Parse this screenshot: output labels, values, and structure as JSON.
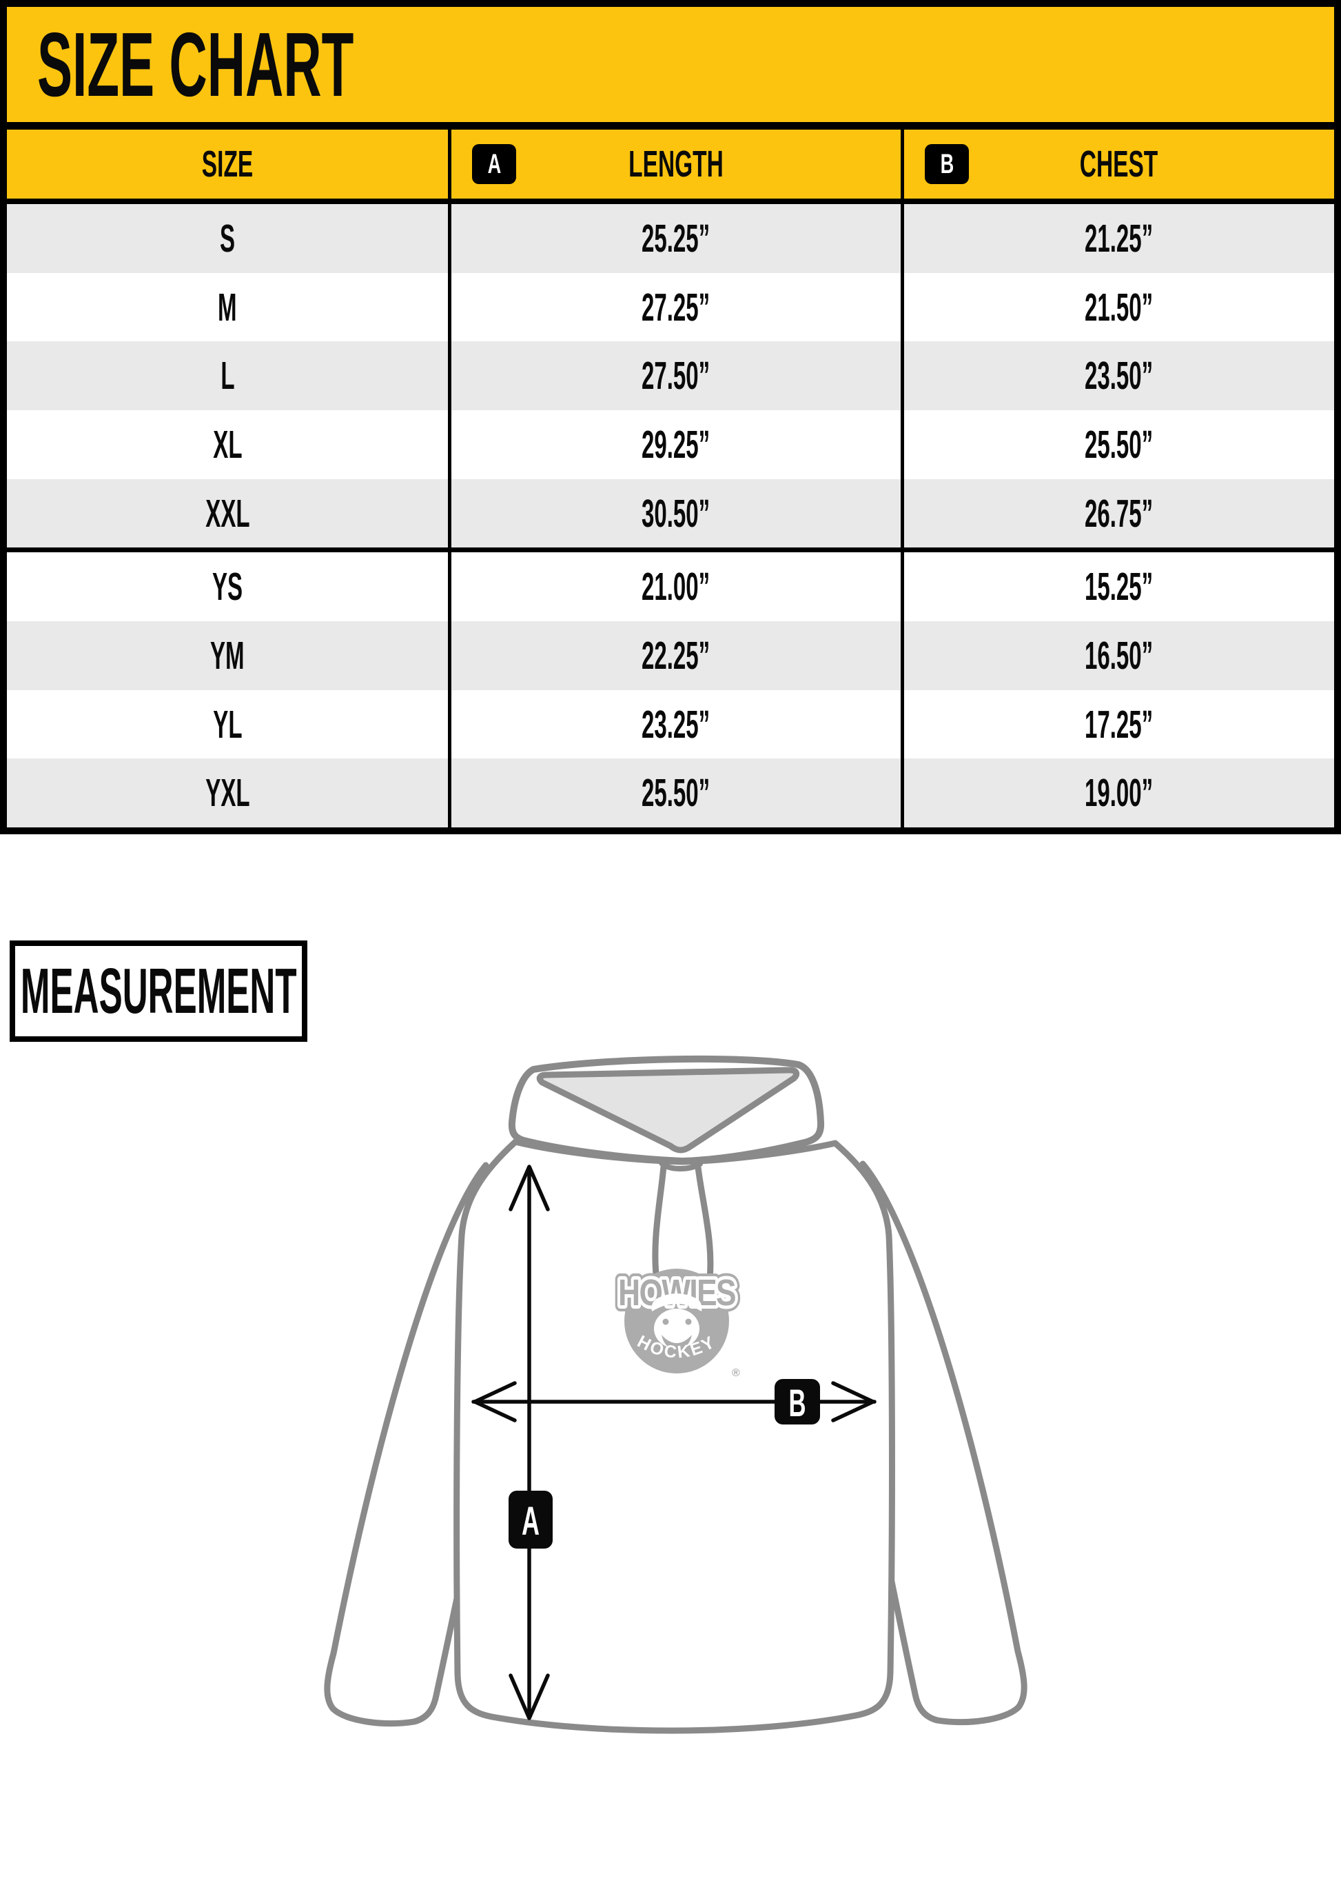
{
  "title": "SIZE CHART",
  "table": {
    "columns": [
      {
        "label": "SIZE",
        "badge": ""
      },
      {
        "label": "LENGTH",
        "badge": "A"
      },
      {
        "label": "CHEST",
        "badge": "B"
      }
    ],
    "rows": [
      {
        "group": "adult",
        "size": "S",
        "length": "25.25”",
        "chest": "21.25”"
      },
      {
        "group": "adult",
        "size": "M",
        "length": "27.25”",
        "chest": "21.50”"
      },
      {
        "group": "adult",
        "size": "L",
        "length": "27.50”",
        "chest": "23.50”"
      },
      {
        "group": "adult",
        "size": "XL",
        "length": "29.25”",
        "chest": "25.50”"
      },
      {
        "group": "adult",
        "size": "XXL",
        "length": "30.50”",
        "chest": "26.75”"
      },
      {
        "group": "youth",
        "size": "YS",
        "length": "21.00”",
        "chest": "15.25”"
      },
      {
        "group": "youth",
        "size": "YM",
        "length": "22.25”",
        "chest": "16.50”"
      },
      {
        "group": "youth",
        "size": "YL",
        "length": "23.25”",
        "chest": "17.25”"
      },
      {
        "group": "youth",
        "size": "YXL",
        "length": "25.50”",
        "chest": "19.00”"
      }
    ]
  },
  "measurement": {
    "label": "MEASUREMENT",
    "marker_a": "A",
    "marker_b": "B",
    "logo": {
      "name": "HOWIES",
      "sub": "HOCKEY",
      "reg": "®"
    }
  },
  "colors": {
    "yellow": "#FDC40F",
    "row_shade": "#E9E9E9",
    "black": "#000000",
    "outline_gray": "#8A8A8A",
    "hood_inner": "#E3E3E3",
    "logo_gray": "#ACACAC"
  }
}
